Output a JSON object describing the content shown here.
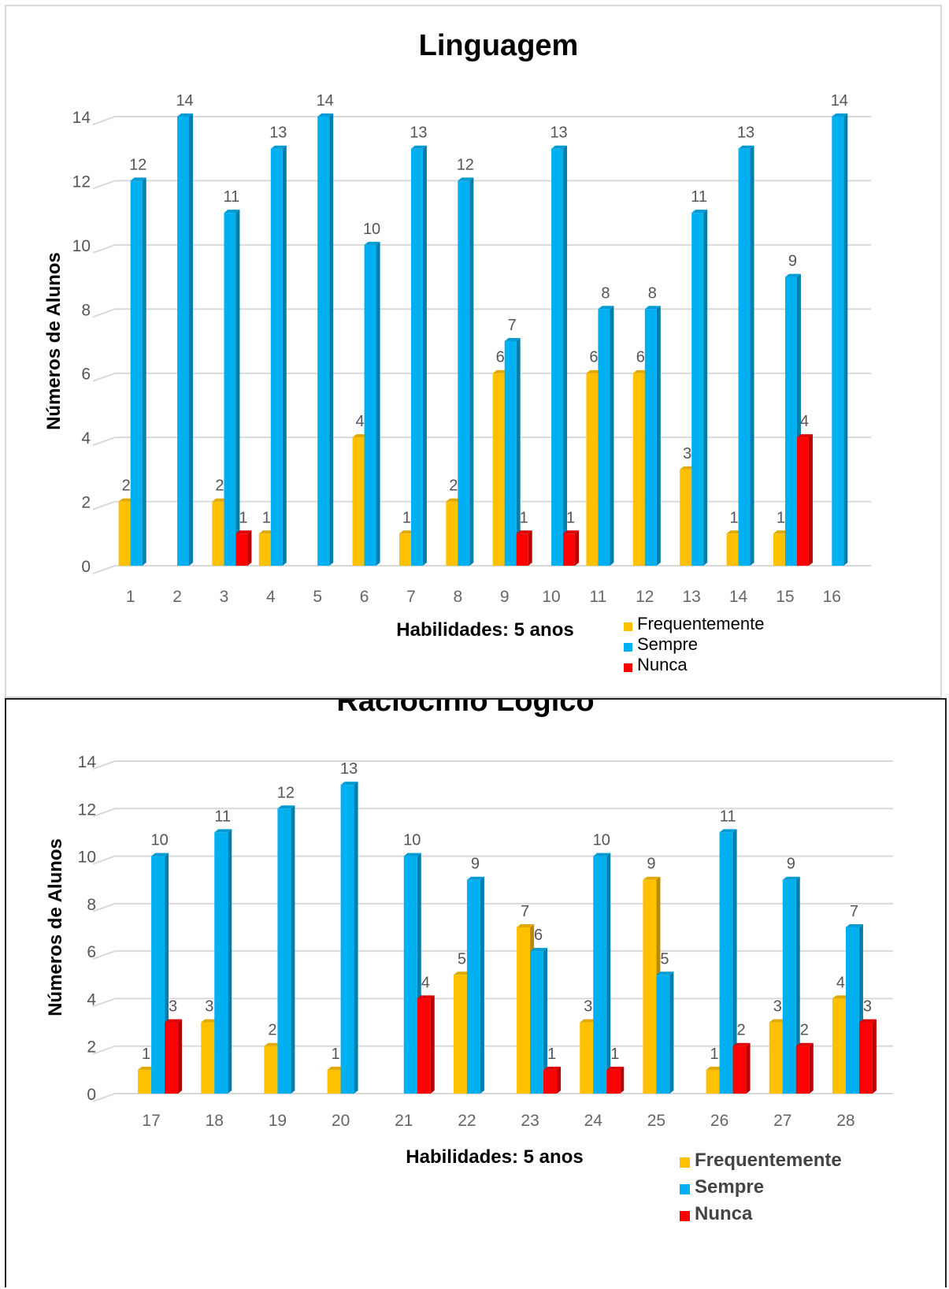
{
  "colors": {
    "frequentemente": "#ffc000",
    "sempre": "#00b0f0",
    "nunca": "#ff0000",
    "grid": "#d9d9d9"
  },
  "chart_data": [
    {
      "type": "bar",
      "title": "Linguagem",
      "xlabel": "Habilidades: 5 anos",
      "ylabel": "Números de Alunos",
      "ylim": [
        0,
        14
      ],
      "yticks": [
        0,
        2,
        4,
        6,
        8,
        10,
        12,
        14
      ],
      "grid": true,
      "legend_position": "bottom-right",
      "categories": [
        "1",
        "2",
        "3",
        "4",
        "5",
        "6",
        "7",
        "8",
        "9",
        "10",
        "11",
        "12",
        "13",
        "14",
        "15",
        "16"
      ],
      "series": [
        {
          "name": "Frequentemente",
          "values": [
            2,
            null,
            2,
            1,
            null,
            4,
            1,
            2,
            6,
            null,
            6,
            6,
            3,
            1,
            1,
            null
          ]
        },
        {
          "name": "Sempre",
          "values": [
            12,
            14,
            11,
            13,
            14,
            10,
            13,
            12,
            7,
            13,
            8,
            8,
            11,
            13,
            9,
            14
          ]
        },
        {
          "name": "Nunca",
          "values": [
            null,
            null,
            1,
            null,
            null,
            null,
            null,
            null,
            1,
            1,
            null,
            null,
            null,
            null,
            4,
            null
          ]
        }
      ]
    },
    {
      "type": "bar",
      "title": "Raciocínio Lógico",
      "xlabel": "Habilidades: 5 anos",
      "ylabel": "Números de Alunos",
      "ylim": [
        0,
        14
      ],
      "yticks": [
        0,
        2,
        4,
        6,
        8,
        10,
        12,
        14
      ],
      "grid": true,
      "legend_position": "bottom-right",
      "categories": [
        "17",
        "18",
        "19",
        "20",
        "21",
        "22",
        "23",
        "24",
        "25",
        "26",
        "27",
        "28"
      ],
      "series": [
        {
          "name": "Frequentemente",
          "values": [
            1,
            3,
            2,
            1,
            null,
            5,
            7,
            3,
            9,
            1,
            3,
            4
          ]
        },
        {
          "name": "Sempre",
          "values": [
            10,
            11,
            12,
            13,
            10,
            9,
            6,
            10,
            5,
            11,
            9,
            7
          ]
        },
        {
          "name": "Nunca",
          "values": [
            3,
            null,
            null,
            null,
            4,
            null,
            1,
            1,
            null,
            2,
            2,
            3
          ]
        }
      ]
    }
  ]
}
